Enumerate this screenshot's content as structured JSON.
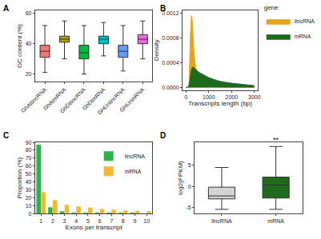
{
  "chart_data": [
    {
      "panel": "A",
      "type": "box",
      "ylabel": "GC content (%)",
      "categories": [
        "GhAtlincRNA",
        "GhAtmRNA",
        "GhDtlincRNA",
        "GhDtmRNA",
        "GHUnlincRNA",
        "GHUnmRNA"
      ],
      "q1": [
        31,
        41,
        30,
        40,
        31,
        40
      ],
      "median": [
        35,
        43,
        34,
        43,
        35,
        43
      ],
      "q3": [
        39,
        45,
        39,
        45,
        39,
        46
      ],
      "lower": [
        21,
        30,
        20,
        32,
        22,
        30
      ],
      "upper": [
        52,
        55,
        52,
        54,
        52,
        55
      ],
      "colors": [
        "#F8766D",
        "#B79F00",
        "#00BA38",
        "#00BFC4",
        "#619CFF",
        "#F564E3"
      ],
      "ylim": [
        15,
        62
      ],
      "yticks": [
        20,
        40,
        60
      ],
      "grid": false
    },
    {
      "panel": "B",
      "type": "area",
      "xlabel": "Transcripts length (bp)",
      "ylabel": "Density",
      "x": [
        0,
        100,
        150,
        200,
        250,
        300,
        350,
        400,
        500,
        600,
        800,
        1000,
        1500,
        2000,
        2500,
        3000
      ],
      "series": [
        {
          "name": "lincRNA",
          "color": "#E8A317",
          "values": [
            0,
            2e-05,
            0.0003,
            0.0009,
            0.00117,
            0.0009,
            0.0006,
            0.0004,
            0.0002,
            0.0001,
            4e-05,
            2e-05,
            1e-05,
            5e-06,
            3e-06,
            2e-06
          ]
        },
        {
          "name": "mRNA",
          "color": "#1B6B1B",
          "values": [
            0,
            1e-05,
            8e-05,
            0.0002,
            0.0003,
            0.00033,
            0.00032,
            0.0003,
            0.00027,
            0.00024,
            0.0002,
            0.00016,
            0.0001,
            7e-05,
            5e-05,
            3e-05
          ]
        }
      ],
      "xlim": [
        -150,
        3150
      ],
      "xticks": [
        0,
        1000,
        2000,
        3000
      ],
      "ylim": [
        -4e-05,
        0.00125
      ],
      "yticks": [
        {
          "value": 0,
          "label": "0.0000"
        },
        {
          "value": 0.0004,
          "label": "0.0004"
        },
        {
          "value": 0.0008,
          "label": "0.0008"
        },
        {
          "value": 0.0012,
          "label": "0.0012"
        }
      ],
      "legend": "right",
      "legend_title": "gene",
      "grid": false
    },
    {
      "panel": "C",
      "type": "bar",
      "xlabel": "Exons per transcript",
      "ylabel": "Proportion (%)",
      "categories": [
        "1",
        "2",
        "3",
        "4",
        "5",
        "6",
        "7",
        "8",
        "9",
        "10"
      ],
      "series": [
        {
          "name": "lincRNA",
          "color": "#2DB34A",
          "values": [
            87,
            8,
            3,
            1,
            0.5,
            0.3,
            0.2,
            0.1,
            0.1,
            0.05
          ]
        },
        {
          "name": "mRNA",
          "color": "#F5B82E",
          "values": [
            27,
            17,
            11,
            9,
            7.5,
            6,
            5,
            4,
            3.5,
            3
          ]
        }
      ],
      "ylim": [
        0,
        90
      ],
      "yticks": [
        0,
        10,
        20,
        30,
        40,
        50,
        60,
        70,
        80,
        90
      ],
      "legend": "top right",
      "grid": false
    },
    {
      "panel": "D",
      "type": "box",
      "ylabel": "log2(FPKM)",
      "categories": [
        "lincRNA",
        "mRNA"
      ],
      "q1": [
        -3,
        -2.8
      ],
      "median": [
        -2.3,
        0.3
      ],
      "q3": [
        -0.2,
        2.2
      ],
      "lower": [
        -5.5,
        -5.5
      ],
      "upper": [
        4.5,
        9.5
      ],
      "colors": [
        "#D3D3D3",
        "#1E6B1E"
      ],
      "ylim": [
        -6.5,
        10.5
      ],
      "yticks": [
        -5,
        0,
        5
      ],
      "annotations": [
        {
          "text": "**",
          "category": "mRNA"
        }
      ],
      "grid": false
    }
  ]
}
